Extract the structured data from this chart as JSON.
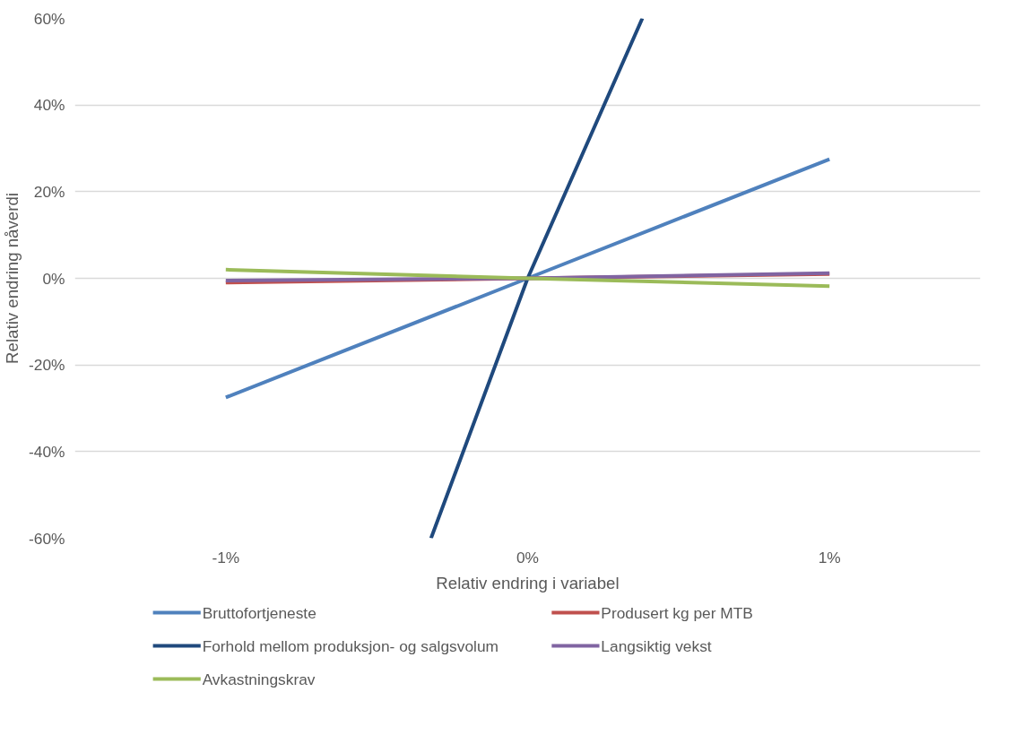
{
  "chart_data": {
    "type": "line",
    "xlabel": "Relativ endring i variabel",
    "ylabel": "Relativ endring nåverdi",
    "x": [
      -1,
      0,
      1
    ],
    "xlim": [
      -1.5,
      1.5
    ],
    "xticks": [
      {
        "value": -1,
        "label": "-1%"
      },
      {
        "value": 0,
        "label": "0%"
      },
      {
        "value": 1,
        "label": "1%"
      }
    ],
    "ylim": [
      -60,
      60
    ],
    "yticks": [
      {
        "value": -60,
        "label": "-60%"
      },
      {
        "value": -40,
        "label": "-40%"
      },
      {
        "value": -20,
        "label": "-20%"
      },
      {
        "value": 0,
        "label": "0%"
      },
      {
        "value": 20,
        "label": "20%"
      },
      {
        "value": 40,
        "label": "40%"
      },
      {
        "value": 60,
        "label": "60%"
      }
    ],
    "grid": "y",
    "legend": "bottom",
    "marker": "none",
    "line_style": "solid",
    "series": [
      {
        "name": "Bruttofortjeneste",
        "color": "#4f81bd",
        "values": [
          -27.5,
          0,
          27.5
        ]
      },
      {
        "name": "Produsert kg per MTB",
        "color": "#c0504d",
        "values": [
          -1,
          0,
          1
        ]
      },
      {
        "name": "Forhold mellom produksjon- og salgsvolum",
        "color": "#1f497d",
        "x": [
          -0.32,
          0,
          0.38
        ],
        "values": [
          -60,
          0,
          60
        ]
      },
      {
        "name": "Langsiktig vekst",
        "color": "#8064a2",
        "values": [
          -0.5,
          0,
          1.2
        ]
      },
      {
        "name": "Avkastningskrav",
        "color": "#9bbb59",
        "values": [
          2,
          0,
          -1.8
        ]
      }
    ]
  }
}
